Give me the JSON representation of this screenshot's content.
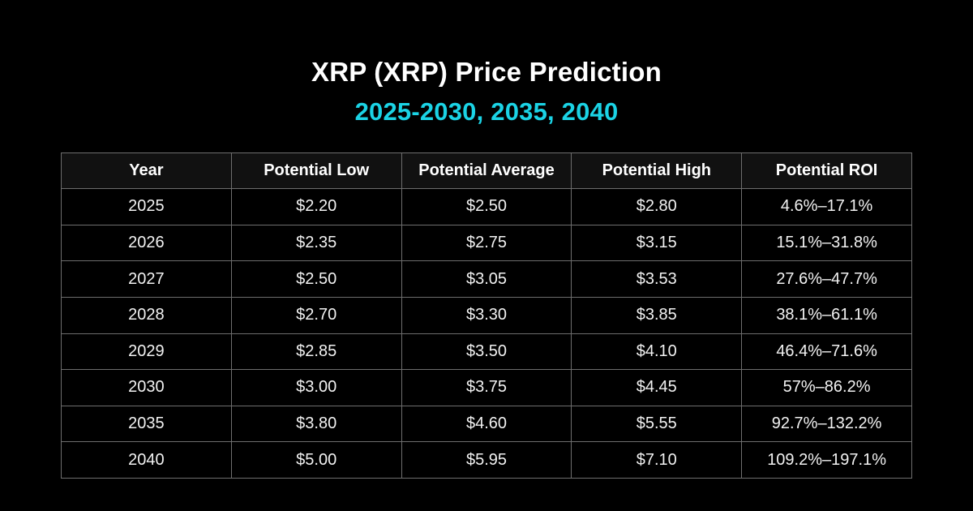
{
  "page": {
    "background_color": "#000000",
    "accent_color": "#1bd3e5",
    "border_color": "#6e6e6e",
    "text_color": "#ffffff"
  },
  "header": {
    "title": "XRP (XRP) Price Prediction",
    "subtitle": "2025-2030, 2035, 2040"
  },
  "table": {
    "columns": [
      "Year",
      "Potential Low",
      "Potential Average",
      "Potential High",
      "Potential ROI"
    ],
    "rows": [
      [
        "2025",
        "$2.20",
        "$2.50",
        "$2.80",
        "4.6%–17.1%"
      ],
      [
        "2026",
        "$2.35",
        "$2.75",
        "$3.15",
        "15.1%–31.8%"
      ],
      [
        "2027",
        "$2.50",
        "$3.05",
        "$3.53",
        "27.6%–47.7%"
      ],
      [
        "2028",
        "$2.70",
        "$3.30",
        "$3.85",
        "38.1%–61.1%"
      ],
      [
        "2029",
        "$2.85",
        "$3.50",
        "$4.10",
        "46.4%–71.6%"
      ],
      [
        "2030",
        "$3.00",
        "$3.75",
        "$4.45",
        "57%–86.2%"
      ],
      [
        "2035",
        "$3.80",
        "$4.60",
        "$5.55",
        "92.7%–132.2%"
      ],
      [
        "2040",
        "$5.00",
        "$5.95",
        "$7.10",
        "109.2%–197.1%"
      ]
    ]
  },
  "chart_data": {
    "type": "table",
    "title": "XRP (XRP) Price Prediction 2025-2030, 2035, 2040",
    "columns": [
      "Year",
      "Potential Low",
      "Potential Average",
      "Potential High",
      "Potential ROI"
    ],
    "categories": [
      2025,
      2026,
      2027,
      2028,
      2029,
      2030,
      2035,
      2040
    ],
    "series": [
      {
        "name": "Potential Low (USD)",
        "values": [
          2.2,
          2.35,
          2.5,
          2.7,
          2.85,
          3.0,
          3.8,
          5.0
        ]
      },
      {
        "name": "Potential Average (USD)",
        "values": [
          2.5,
          2.75,
          3.05,
          3.3,
          3.5,
          3.75,
          4.6,
          5.95
        ]
      },
      {
        "name": "Potential High (USD)",
        "values": [
          2.8,
          3.15,
          3.53,
          3.85,
          4.1,
          4.45,
          5.55,
          7.1
        ]
      },
      {
        "name": "Potential ROI",
        "values": [
          "4.6%–17.1%",
          "15.1%–31.8%",
          "27.6%–47.7%",
          "38.1%–61.1%",
          "46.4%–71.6%",
          "57%–86.2%",
          "92.7%–132.2%",
          "109.2%–197.1%"
        ]
      }
    ]
  }
}
